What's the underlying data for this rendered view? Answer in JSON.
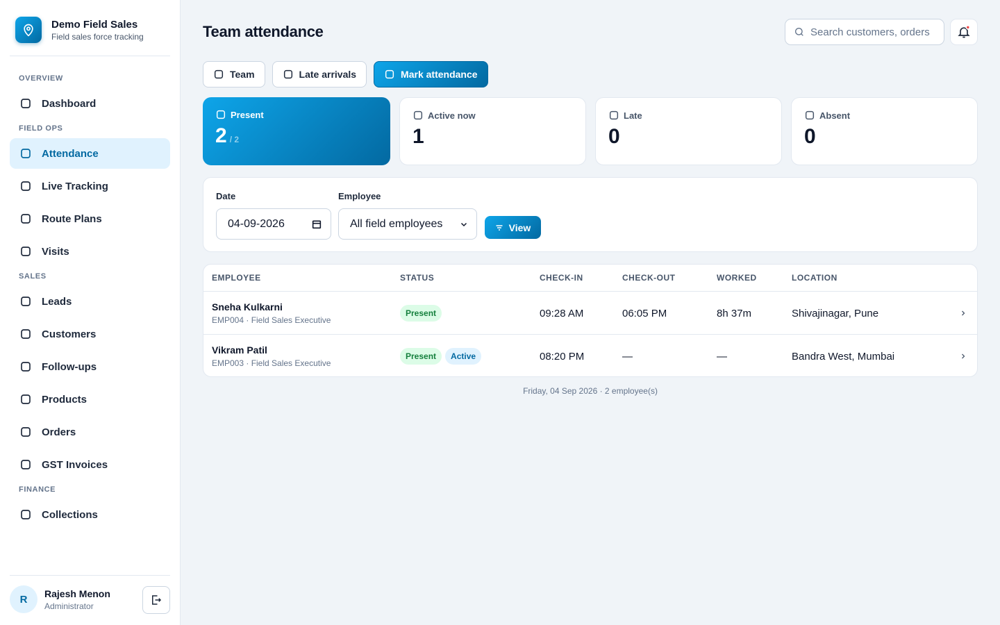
{
  "sidebar": {
    "brand": {
      "title": "Demo Field Sales",
      "subtitle": "Field sales force tracking"
    },
    "sections": [
      {
        "heading": "OVERVIEW",
        "items": [
          "Dashboard"
        ]
      },
      {
        "heading": "FIELD OPS",
        "items": [
          "Attendance",
          "Live Tracking",
          "Route Plans",
          "Visits"
        ]
      },
      {
        "heading": "SALES",
        "items": [
          "Leads",
          "Customers",
          "Follow-ups",
          "Products",
          "Orders",
          "GST Invoices"
        ]
      },
      {
        "heading": "FINANCE",
        "items": [
          "Collections"
        ]
      }
    ],
    "active_item": "Attendance",
    "user": {
      "initial": "R",
      "name": "Rajesh Menon",
      "role": "Administrator"
    }
  },
  "header": {
    "title": "Team attendance",
    "search_placeholder": "Search customers, orders"
  },
  "tabs": [
    "Team",
    "Late arrivals",
    "Mark attendance"
  ],
  "primary_tab": "Mark attendance",
  "stats": [
    {
      "label": "Present",
      "value": 2,
      "suffix": "/ 2"
    },
    {
      "label": "Active now",
      "value": 1
    },
    {
      "label": "Late",
      "value": 0
    },
    {
      "label": "Absent",
      "value": 0
    }
  ],
  "filters": {
    "date_label": "Date",
    "date_value": "04-09-2026",
    "employee_label": "Employee",
    "employee_value": "All field employees",
    "button": "View"
  },
  "table": {
    "columns": [
      "EMPLOYEE",
      "STATUS",
      "CHECK-IN",
      "CHECK-OUT",
      "WORKED",
      "LOCATION"
    ],
    "rows": [
      {
        "name": "Sneha Kulkarni",
        "detail": "EMP004 · Field Sales Executive",
        "badges": [
          "Present"
        ],
        "check_in": "09:28 AM",
        "check_out": "06:05 PM",
        "worked": "8h 37m",
        "location": "Shivajinagar, Pune"
      },
      {
        "name": "Vikram Patil",
        "detail": "EMP003 · Field Sales Executive",
        "badges": [
          "Present",
          "Active"
        ],
        "check_in": "08:20 PM",
        "check_out": "—",
        "worked": "—",
        "location": "Bandra West, Mumbai"
      }
    ],
    "footer": "Friday, 04 Sep 2026 · 2 employee(s)"
  }
}
